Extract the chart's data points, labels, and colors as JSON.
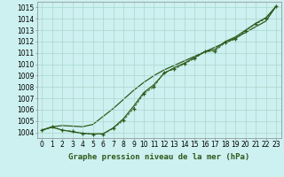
{
  "title": "Graphe pression niveau de la mer (hPa)",
  "background_color": "#cdf0f0",
  "grid_color": "#a8d8cc",
  "line_color": "#2d5a1b",
  "x_values": [
    0,
    1,
    2,
    3,
    4,
    5,
    6,
    7,
    8,
    9,
    10,
    11,
    12,
    13,
    14,
    15,
    16,
    17,
    18,
    19,
    20,
    21,
    22,
    23
  ],
  "y_markers": [
    1004.2,
    1004.5,
    1004.2,
    1004.1,
    1003.9,
    1003.85,
    1003.85,
    1004.35,
    1005.05,
    1006.1,
    1007.4,
    1008.0,
    1009.3,
    1009.55,
    1010.05,
    1010.5,
    1011.1,
    1011.15,
    1011.9,
    1012.2,
    1012.95,
    1013.55,
    1014.0,
    1015.1
  ],
  "y_smooth": [
    1004.2,
    1004.45,
    1004.2,
    1004.05,
    1003.92,
    1003.87,
    1003.88,
    1004.4,
    1005.2,
    1006.3,
    1007.5,
    1008.2,
    1009.2,
    1009.7,
    1010.1,
    1010.6,
    1011.1,
    1011.3,
    1012.0,
    1012.4,
    1013.0,
    1013.6,
    1014.1,
    1015.1
  ],
  "y_trend": [
    1004.2,
    1004.5,
    1004.6,
    1004.55,
    1004.5,
    1004.7,
    1005.4,
    1006.1,
    1006.9,
    1007.7,
    1008.4,
    1009.0,
    1009.5,
    1009.9,
    1010.3,
    1010.7,
    1011.1,
    1011.5,
    1011.9,
    1012.3,
    1012.8,
    1013.3,
    1013.8,
    1015.1
  ],
  "ylim": [
    1003.5,
    1015.5
  ],
  "yticks": [
    1004,
    1005,
    1006,
    1007,
    1008,
    1009,
    1010,
    1011,
    1012,
    1013,
    1014,
    1015
  ],
  "xlim": [
    -0.5,
    23.5
  ],
  "xticks": [
    0,
    1,
    2,
    3,
    4,
    5,
    6,
    7,
    8,
    9,
    10,
    11,
    12,
    13,
    14,
    15,
    16,
    17,
    18,
    19,
    20,
    21,
    22,
    23
  ],
  "tick_fontsize": 5.5,
  "title_fontsize": 6.5,
  "title_color": "#2d5a1b"
}
